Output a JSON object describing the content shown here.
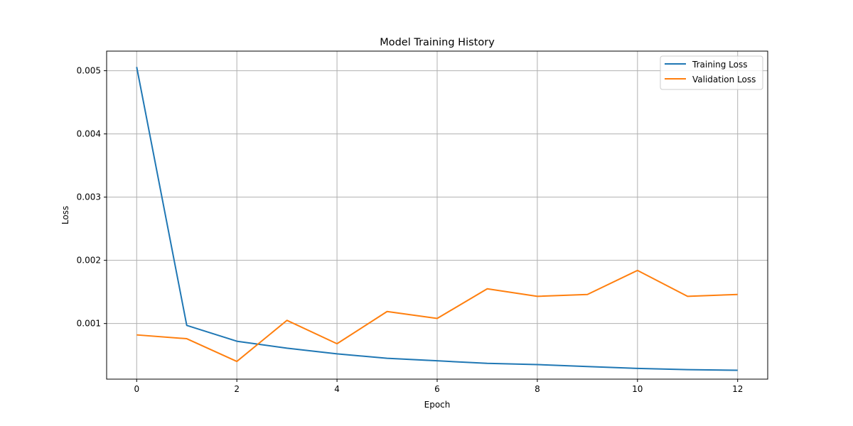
{
  "chart_data": {
    "type": "line",
    "title": "Model Training History",
    "xlabel": "Epoch",
    "ylabel": "Loss",
    "x": [
      0,
      1,
      2,
      3,
      4,
      5,
      6,
      7,
      8,
      9,
      10,
      11,
      12
    ],
    "xlim": [
      -0.6,
      12.6
    ],
    "ylim": [
      0.00012,
      0.00531
    ],
    "xticks": [
      0,
      2,
      4,
      6,
      8,
      10,
      12
    ],
    "xtick_labels": [
      "0",
      "2",
      "4",
      "6",
      "8",
      "10",
      "12"
    ],
    "yticks": [
      0.001,
      0.002,
      0.003,
      0.004,
      0.005
    ],
    "ytick_labels": [
      "0.001",
      "0.002",
      "0.003",
      "0.004",
      "0.005"
    ],
    "grid": true,
    "legend_position": "top-right",
    "series": [
      {
        "name": "Training Loss",
        "color": "#1f77b4",
        "values": [
          0.00506,
          0.00097,
          0.00072,
          0.00061,
          0.00052,
          0.00045,
          0.00041,
          0.00037,
          0.00035,
          0.00032,
          0.00029,
          0.00027,
          0.00026
        ]
      },
      {
        "name": "Validation Loss",
        "color": "#ff7f0e",
        "values": [
          0.00082,
          0.00076,
          0.0004,
          0.00105,
          0.00068,
          0.00119,
          0.00108,
          0.00155,
          0.00143,
          0.00146,
          0.00184,
          0.00143,
          0.00146
        ]
      }
    ]
  }
}
